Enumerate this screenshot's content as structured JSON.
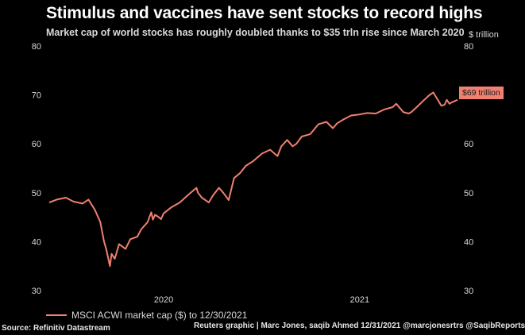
{
  "header": {
    "title": "Stimulus and vaccines have sent stocks to record highs",
    "subtitle": "Market cap of world stocks has roughly doubled thanks to $35 trln rise since March 2020",
    "unit_label": "$ trillion"
  },
  "end_label": "$69 trillion",
  "footer": {
    "source": "Source: Refinitiv Datastream",
    "credits": "Reuters graphic | Marc Jones, saqib Ahmed 12/31/2021 @marcjonesrtrs @SaqibReports"
  },
  "colors": {
    "line": "#f08070",
    "background": "#000000",
    "text": "#ffffff"
  },
  "chart_data": {
    "type": "line",
    "title": "Stimulus and vaccines have sent stocks to record highs",
    "subtitle": "Market cap of world stocks has roughly doubled thanks to $35 trln rise since March 2020",
    "ylabel": "$ trillion",
    "ylim": [
      30,
      80
    ],
    "yticks": [
      30,
      40,
      50,
      60,
      70,
      80
    ],
    "xlim": [
      "2019-12-01",
      "2021-12-30"
    ],
    "xtick_labels": [
      "2020",
      "2021"
    ],
    "xtick_dates": [
      "2020-07-01",
      "2021-07-01"
    ],
    "grid": false,
    "legend": {
      "position": "bottom-left",
      "entries": [
        "MSCI ACWI market cap ($) to 12/30/2021"
      ]
    },
    "series": [
      {
        "name": "MSCI ACWI market cap ($) to 12/30/2021",
        "x": [
          "2019-12-01",
          "2019-12-15",
          "2020-01-01",
          "2020-01-15",
          "2020-02-01",
          "2020-02-12",
          "2020-02-24",
          "2020-03-05",
          "2020-03-12",
          "2020-03-16",
          "2020-03-23",
          "2020-03-26",
          "2020-04-01",
          "2020-04-09",
          "2020-04-15",
          "2020-04-21",
          "2020-04-30",
          "2020-05-13",
          "2020-05-20",
          "2020-06-01",
          "2020-06-08",
          "2020-06-11",
          "2020-06-15",
          "2020-06-22",
          "2020-06-26",
          "2020-07-01",
          "2020-07-15",
          "2020-07-31",
          "2020-08-15",
          "2020-08-31",
          "2020-09-03",
          "2020-09-10",
          "2020-09-23",
          "2020-10-01",
          "2020-10-12",
          "2020-10-20",
          "2020-10-30",
          "2020-11-09",
          "2020-11-20",
          "2020-12-01",
          "2020-12-15",
          "2020-12-31",
          "2021-01-15",
          "2021-01-29",
          "2021-02-05",
          "2021-02-16",
          "2021-02-26",
          "2021-03-05",
          "2021-03-15",
          "2021-03-31",
          "2021-04-15",
          "2021-04-30",
          "2021-05-12",
          "2021-05-20",
          "2021-06-01",
          "2021-06-15",
          "2021-06-30",
          "2021-07-15",
          "2021-07-31",
          "2021-08-15",
          "2021-08-31",
          "2021-09-07",
          "2021-09-20",
          "2021-09-30",
          "2021-10-05",
          "2021-10-15",
          "2021-10-29",
          "2021-11-08",
          "2021-11-15",
          "2021-11-26",
          "2021-11-30",
          "2021-12-06",
          "2021-12-10",
          "2021-12-15",
          "2021-12-20",
          "2021-12-30"
        ],
        "values": [
          48.0,
          48.6,
          49.0,
          48.2,
          47.8,
          48.6,
          46.5,
          44.0,
          40.0,
          38.5,
          35.0,
          37.5,
          36.5,
          39.5,
          39.0,
          38.5,
          40.5,
          41.0,
          42.5,
          44.0,
          46.0,
          44.5,
          45.5,
          45.0,
          44.6,
          45.8,
          47.0,
          48.0,
          49.5,
          51.0,
          50.0,
          49.0,
          48.0,
          49.5,
          51.0,
          50.0,
          48.5,
          53.0,
          54.0,
          55.5,
          56.5,
          58.0,
          58.8,
          57.5,
          59.5,
          60.8,
          59.5,
          60.0,
          61.5,
          62.0,
          64.0,
          64.5,
          63.2,
          64.2,
          65.0,
          65.8,
          66.0,
          66.3,
          66.2,
          67.0,
          67.5,
          68.2,
          66.5,
          66.2,
          66.5,
          67.5,
          69.0,
          70.0,
          70.5,
          68.5,
          67.8,
          68.0,
          69.0,
          68.2,
          68.5,
          69.0
        ]
      }
    ]
  }
}
